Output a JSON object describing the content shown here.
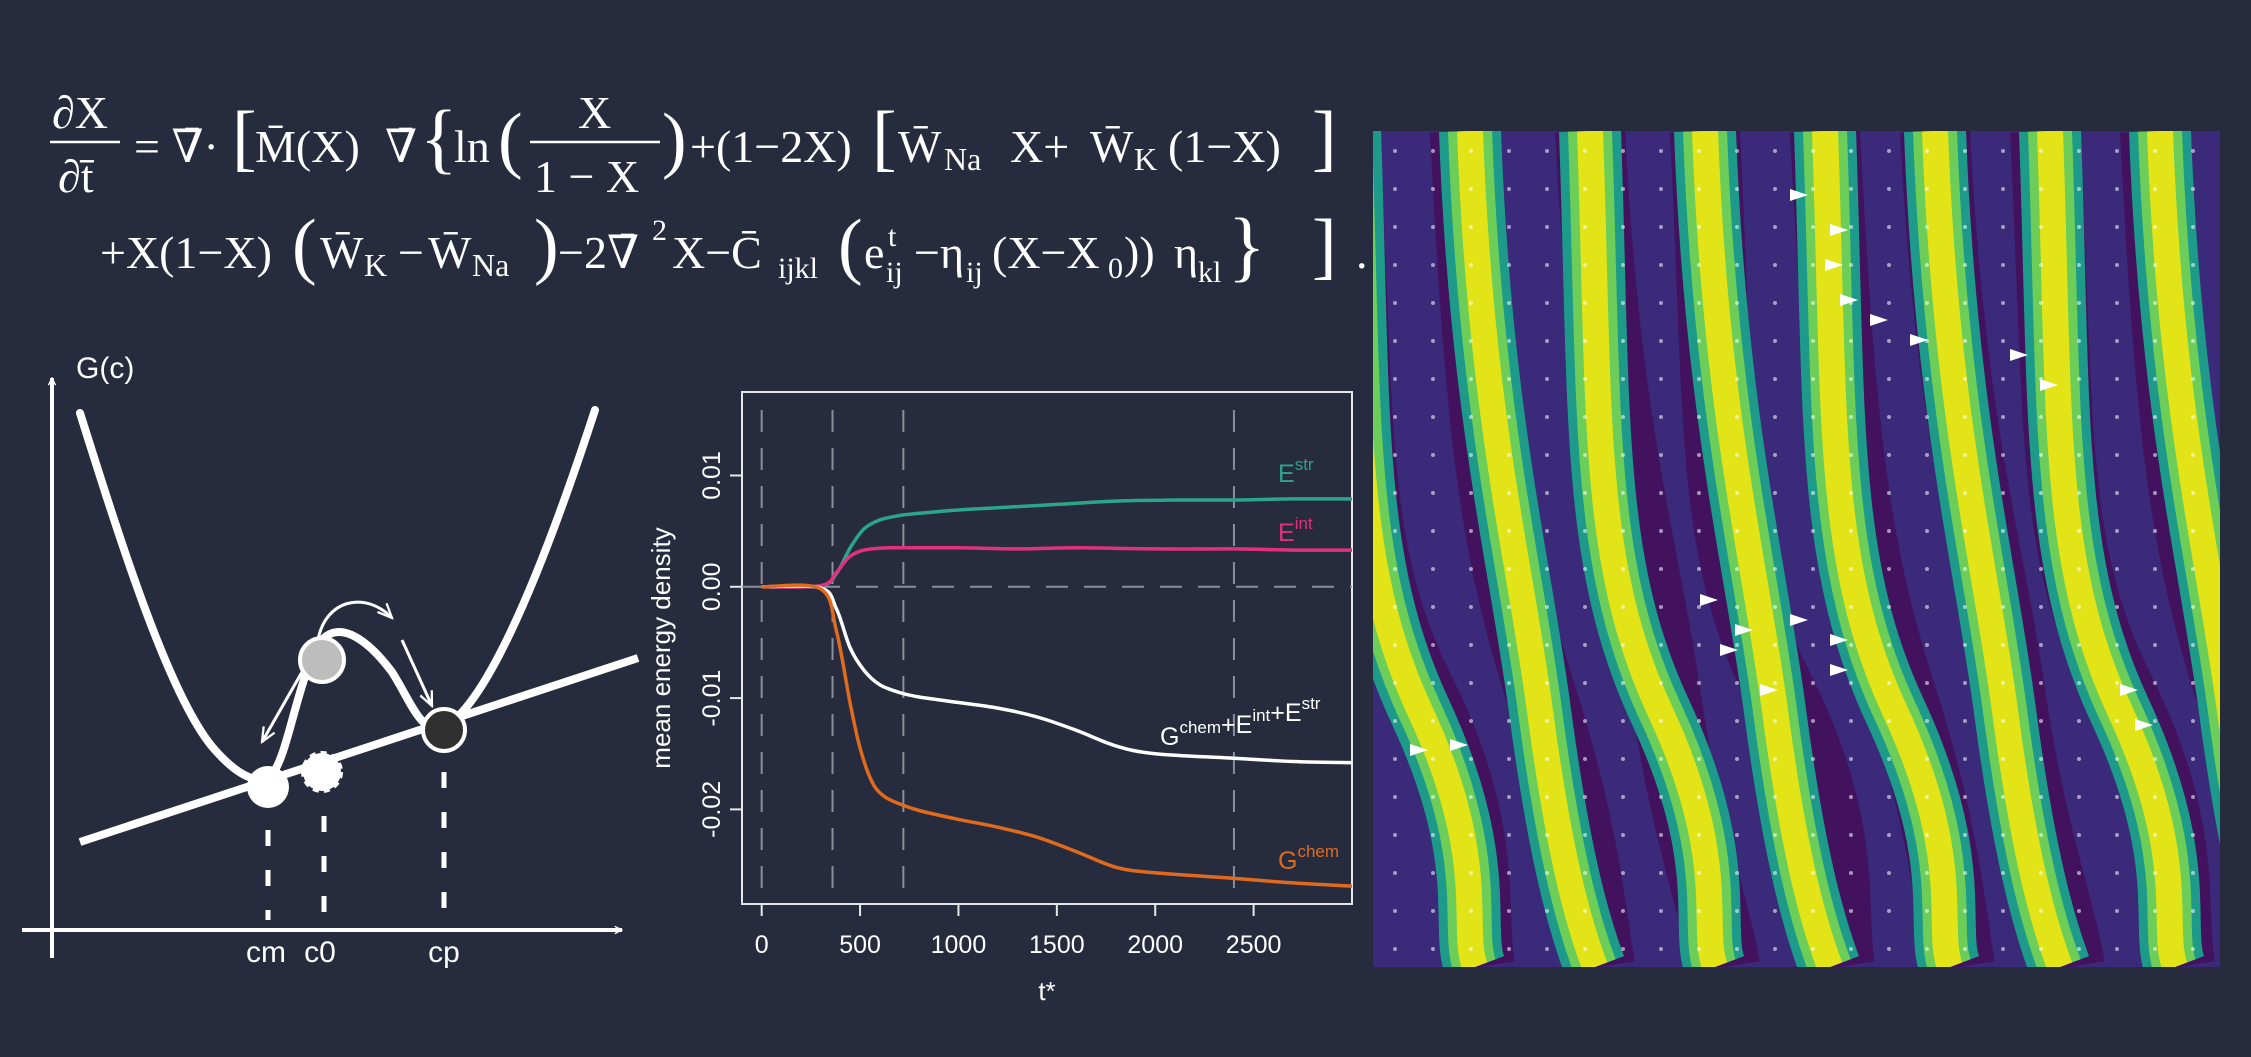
{
  "equation": {
    "lhs_num": "∂X",
    "lhs_den": "∂t̄",
    "eq": "= ∇̄·",
    "mob": "M̄(X)",
    "grad": "∇̄",
    "ln": "ln",
    "frac_num": "X",
    "frac_den": "1 − X",
    "term1": "+(1−2X)",
    "wna": "W̄",
    "wna_sub": "Na",
    "wna_x": "X+",
    "wk": "W̄",
    "wk_sub": "K",
    "wk_x": "(1−X)",
    "line2_a": "+X(1−X)",
    "line2_wk": "W̄",
    "line2_wk_sub": "K",
    "line2_minus": "−",
    "line2_wna": "W̄",
    "line2_wna_sub": "Na",
    "line2_b": "−2∇̄",
    "line2_b_sup": "2",
    "line2_c": "X−C̄",
    "line2_c_sub": "ijkl",
    "line2_e": "e",
    "line2_e_sup": "t",
    "line2_e_sub": "ij",
    "line2_eta": "−η",
    "line2_eta_sub": "ij",
    "line2_x": "(X−X",
    "line2_x0_sub": "0",
    "line2_x_close": "))",
    "line2_eta2": "η",
    "line2_eta2_sub": "kl",
    "line2_end": "."
  },
  "energy_diagram": {
    "ylabel": "G(c)",
    "ticks": [
      "cm",
      "c0",
      "cp"
    ]
  },
  "chart_data": {
    "type": "line",
    "xlabel": "t*",
    "ylabel": "mean energy density",
    "xlim": [
      -100,
      3000
    ],
    "ylim": [
      -0.0285,
      0.0175
    ],
    "xticks": [
      0,
      500,
      1000,
      1500,
      2000,
      2500
    ],
    "xtick_labels": [
      "0",
      "500",
      "1000",
      "1500",
      "2000",
      "2500"
    ],
    "yticks": [
      -0.02,
      -0.01,
      0.0,
      0.01
    ],
    "ytick_labels": [
      "-0.02",
      "-0.01",
      "0.00",
      "0.01"
    ],
    "vlines": [
      0,
      360,
      720,
      2400
    ],
    "hline": 0,
    "series": [
      {
        "name": "Estr",
        "label": "E",
        "sup": "str",
        "color": "#2ca58d",
        "x": [
          0,
          300,
          380,
          450,
          520,
          600,
          700,
          800,
          1000,
          1200,
          1500,
          1800,
          2100,
          2400,
          2700,
          3000
        ],
        "y": [
          0,
          0.0001,
          0.0012,
          0.0035,
          0.0052,
          0.006,
          0.0064,
          0.0066,
          0.0069,
          0.0071,
          0.0074,
          0.0077,
          0.0078,
          0.0078,
          0.0079,
          0.0079
        ]
      },
      {
        "name": "Eint",
        "label": "E",
        "sup": "int",
        "color": "#e0307f",
        "x": [
          0,
          300,
          380,
          440,
          500,
          560,
          650,
          800,
          1000,
          1300,
          1600,
          2000,
          2400,
          2700,
          3000
        ],
        "y": [
          0,
          0.0001,
          0.0013,
          0.0026,
          0.0032,
          0.0034,
          0.0035,
          0.0035,
          0.0035,
          0.0034,
          0.0035,
          0.0034,
          0.0034,
          0.0033,
          0.0033
        ]
      },
      {
        "name": "Gchem+Eint+Estr",
        "label": "G",
        "sup": "chem",
        "label2": "+E",
        "sup2": "int",
        "label3": "+E",
        "sup3": "str",
        "color": "#ffffff",
        "x": [
          0,
          300,
          380,
          450,
          520,
          600,
          700,
          800,
          1000,
          1200,
          1400,
          1600,
          1800,
          2000,
          2400,
          2700,
          3000
        ],
        "y": [
          0,
          -0.0001,
          -0.002,
          -0.0055,
          -0.0075,
          -0.0088,
          -0.0095,
          -0.0099,
          -0.0104,
          -0.0109,
          -0.0117,
          -0.0129,
          -0.0143,
          -0.015,
          -0.0154,
          -0.0157,
          -0.0158
        ]
      },
      {
        "name": "Gchem",
        "label": "G",
        "sup": "chem",
        "color": "#e06a1e",
        "x": [
          0,
          300,
          380,
          450,
          500,
          560,
          620,
          700,
          800,
          1000,
          1200,
          1400,
          1600,
          1800,
          2000,
          2400,
          2700,
          3000
        ],
        "y": [
          0,
          -0.0002,
          -0.004,
          -0.0105,
          -0.0145,
          -0.0175,
          -0.0188,
          -0.0195,
          -0.0201,
          -0.0209,
          -0.0216,
          -0.0225,
          -0.0238,
          -0.0252,
          -0.0257,
          -0.0262,
          -0.0266,
          -0.0269
        ]
      }
    ]
  }
}
